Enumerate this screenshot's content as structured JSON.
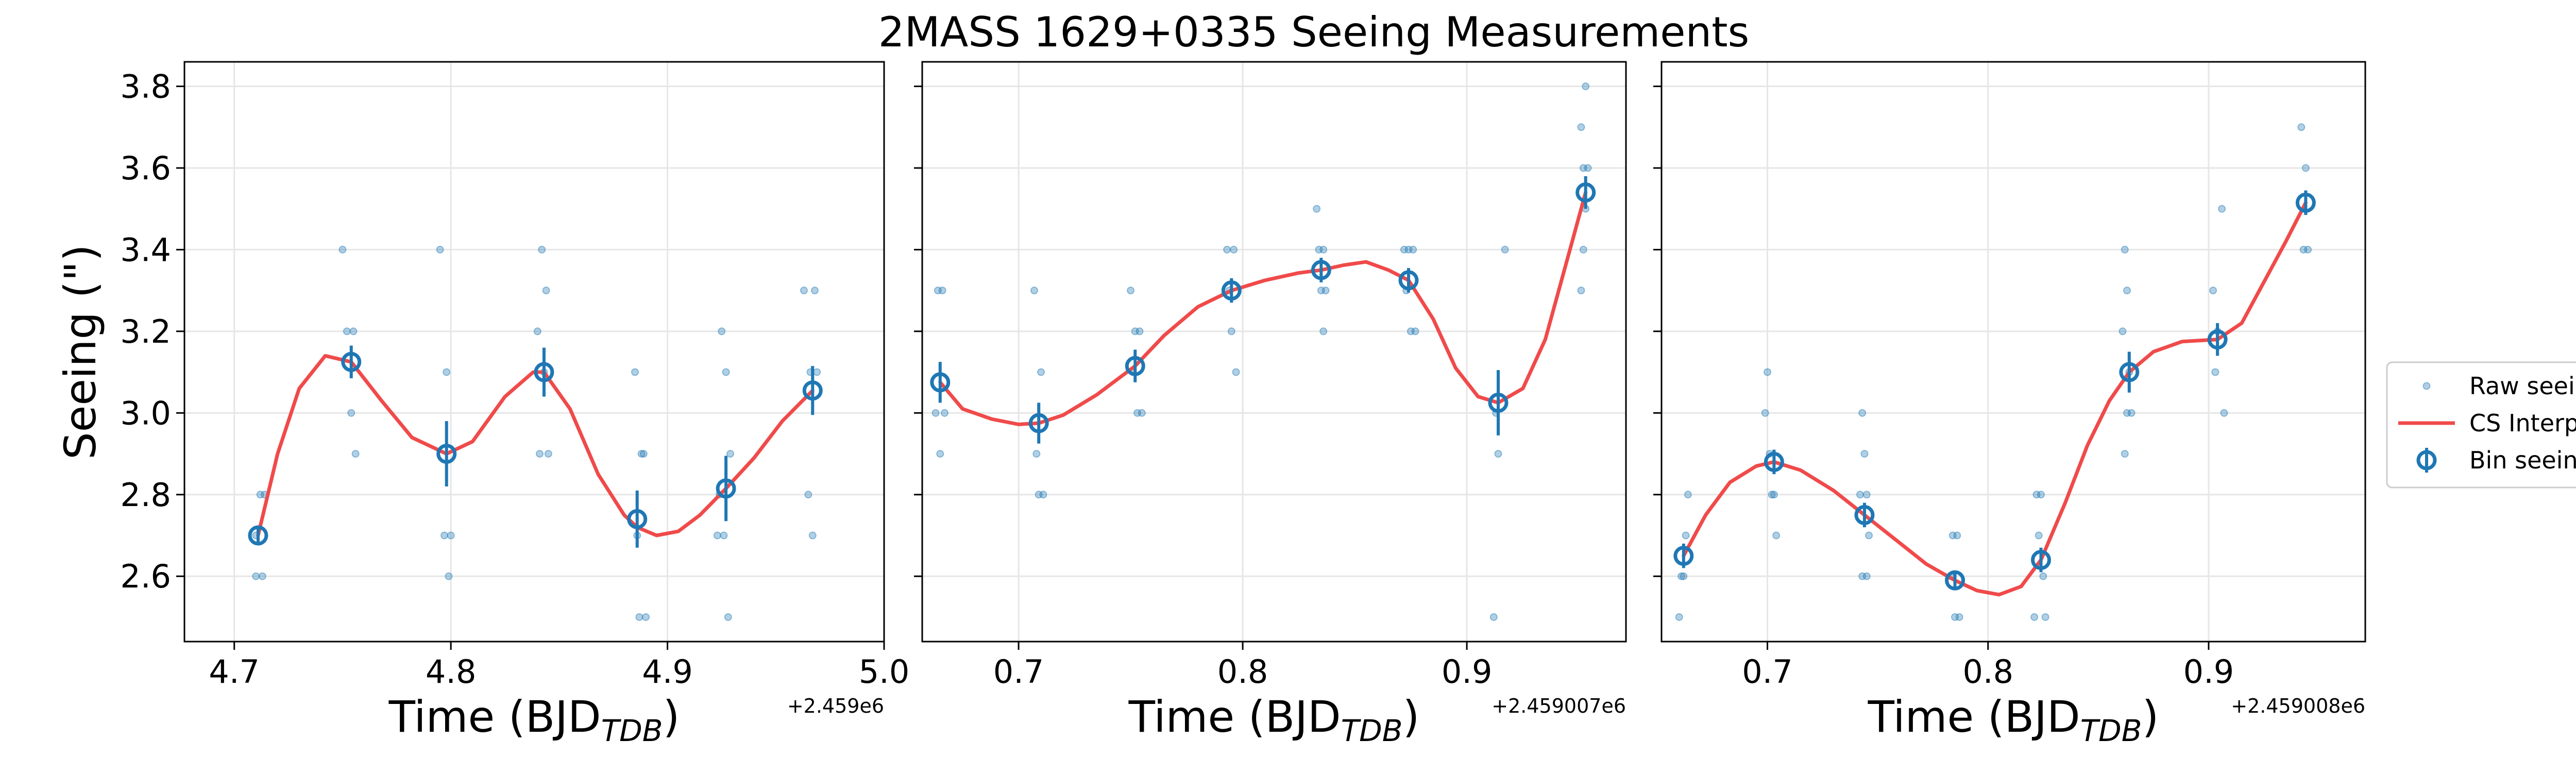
{
  "chart_data": {
    "type": "scatter",
    "title": "2MASS 1629+0335 Seeing Measurements",
    "ylabel": "Seeing (\")",
    "xlabel": {
      "main": "Time (BJD",
      "sub": "TDB",
      "close": ")"
    },
    "ylim": [
      2.44,
      3.86
    ],
    "yticks": [
      "2.6",
      "2.8",
      "3.0",
      "3.2",
      "3.4",
      "3.6",
      "3.8"
    ],
    "grid": true,
    "legend": {
      "placement": "right",
      "entries": [
        "Raw seeing",
        "CS Interp.",
        "Bin seeing"
      ]
    },
    "colors": {
      "raw": "#1f77b4",
      "interp": "#f04a4a",
      "bin": "#1f77b4"
    },
    "panels": [
      {
        "offset_label": "+2.459e6",
        "xlim": [
          4.677,
          5.0
        ],
        "xticks": [
          "4.7",
          "4.8",
          "4.9",
          "5.0"
        ],
        "raw": [
          [
            4.71,
            2.6
          ],
          [
            4.713,
            2.6
          ],
          [
            4.71,
            2.7
          ],
          [
            4.712,
            2.8
          ],
          [
            4.714,
            2.8
          ],
          [
            4.75,
            3.4
          ],
          [
            4.752,
            3.2
          ],
          [
            4.755,
            3.2
          ],
          [
            4.754,
            3.0
          ],
          [
            4.756,
            2.9
          ],
          [
            4.795,
            3.4
          ],
          [
            4.798,
            3.1
          ],
          [
            4.797,
            2.7
          ],
          [
            4.8,
            2.7
          ],
          [
            4.799,
            2.6
          ],
          [
            4.842,
            3.4
          ],
          [
            4.844,
            3.3
          ],
          [
            4.84,
            3.2
          ],
          [
            4.843,
            3.1
          ],
          [
            4.841,
            2.9
          ],
          [
            4.845,
            2.9
          ],
          [
            4.885,
            3.1
          ],
          [
            4.888,
            2.9
          ],
          [
            4.889,
            2.9
          ],
          [
            4.886,
            2.7
          ],
          [
            4.887,
            2.5
          ],
          [
            4.89,
            2.5
          ],
          [
            4.925,
            3.2
          ],
          [
            4.927,
            3.1
          ],
          [
            4.929,
            2.9
          ],
          [
            4.924,
            2.8
          ],
          [
            4.926,
            2.7
          ],
          [
            4.923,
            2.7
          ],
          [
            4.928,
            2.5
          ],
          [
            4.963,
            3.3
          ],
          [
            4.968,
            3.3
          ],
          [
            4.966,
            3.1
          ],
          [
            4.969,
            3.1
          ],
          [
            4.965,
            2.8
          ],
          [
            4.967,
            2.7
          ]
        ],
        "bins": [
          {
            "x": 4.711,
            "y": 2.7,
            "err": 0.02
          },
          {
            "x": 4.754,
            "y": 3.125,
            "err": 0.04
          },
          {
            "x": 4.798,
            "y": 2.9,
            "err": 0.08
          },
          {
            "x": 4.843,
            "y": 3.1,
            "err": 0.06
          },
          {
            "x": 4.886,
            "y": 2.74,
            "err": 0.07
          },
          {
            "x": 4.927,
            "y": 2.815,
            "err": 0.08
          },
          {
            "x": 4.967,
            "y": 3.055,
            "err": 0.06
          }
        ],
        "interp": [
          [
            4.711,
            2.7
          ],
          [
            4.72,
            2.9
          ],
          [
            4.73,
            3.06
          ],
          [
            4.742,
            3.14
          ],
          [
            4.754,
            3.125
          ],
          [
            4.768,
            3.03
          ],
          [
            4.782,
            2.94
          ],
          [
            4.798,
            2.9
          ],
          [
            4.81,
            2.93
          ],
          [
            4.825,
            3.04
          ],
          [
            4.838,
            3.1
          ],
          [
            4.843,
            3.1
          ],
          [
            4.855,
            3.01
          ],
          [
            4.868,
            2.85
          ],
          [
            4.88,
            2.75
          ],
          [
            4.886,
            2.72
          ],
          [
            4.895,
            2.7
          ],
          [
            4.905,
            2.71
          ],
          [
            4.915,
            2.75
          ],
          [
            4.927,
            2.815
          ],
          [
            4.94,
            2.89
          ],
          [
            4.953,
            2.98
          ],
          [
            4.967,
            3.055
          ]
        ]
      },
      {
        "offset_label": "+2.459007e6",
        "xlim": [
          4.657,
          4.971
        ],
        "xticks": [
          "0.7",
          "0.8",
          "0.9"
        ],
        "raw": [
          [
            4.664,
            3.3
          ],
          [
            4.666,
            3.3
          ],
          [
            4.663,
            3.0
          ],
          [
            4.667,
            3.0
          ],
          [
            4.665,
            2.9
          ],
          [
            4.707,
            3.3
          ],
          [
            4.71,
            3.1
          ],
          [
            4.708,
            2.9
          ],
          [
            4.709,
            2.8
          ],
          [
            4.711,
            2.8
          ],
          [
            4.75,
            3.3
          ],
          [
            4.752,
            3.2
          ],
          [
            4.754,
            3.2
          ],
          [
            4.751,
            3.1
          ],
          [
            4.755,
            3.0
          ],
          [
            4.753,
            3.0
          ],
          [
            4.793,
            3.4
          ],
          [
            4.796,
            3.4
          ],
          [
            4.794,
            3.3
          ],
          [
            4.795,
            3.2
          ],
          [
            4.797,
            3.1
          ],
          [
            4.833,
            3.5
          ],
          [
            4.834,
            3.4
          ],
          [
            4.836,
            3.4
          ],
          [
            4.835,
            3.3
          ],
          [
            4.837,
            3.3
          ],
          [
            4.836,
            3.2
          ],
          [
            4.872,
            3.4
          ],
          [
            4.874,
            3.4
          ],
          [
            4.876,
            3.4
          ],
          [
            4.873,
            3.3
          ],
          [
            4.875,
            3.2
          ],
          [
            4.877,
            3.2
          ],
          [
            4.913,
            3.0
          ],
          [
            4.914,
            2.9
          ],
          [
            4.917,
            3.4
          ],
          [
            4.912,
            2.5
          ],
          [
            4.953,
            3.8
          ],
          [
            4.951,
            3.7
          ],
          [
            4.952,
            3.6
          ],
          [
            4.954,
            3.6
          ],
          [
            4.953,
            3.5
          ],
          [
            4.952,
            3.4
          ],
          [
            4.951,
            3.3
          ]
        ],
        "bins": [
          {
            "x": 4.665,
            "y": 3.075,
            "err": 0.05
          },
          {
            "x": 4.709,
            "y": 2.975,
            "err": 0.05
          },
          {
            "x": 4.752,
            "y": 3.115,
            "err": 0.04
          },
          {
            "x": 4.795,
            "y": 3.3,
            "err": 0.03
          },
          {
            "x": 4.835,
            "y": 3.35,
            "err": 0.03
          },
          {
            "x": 4.874,
            "y": 3.325,
            "err": 0.03
          },
          {
            "x": 4.914,
            "y": 3.025,
            "err": 0.08
          },
          {
            "x": 4.953,
            "y": 3.54,
            "err": 0.04
          }
        ],
        "interp": [
          [
            4.665,
            3.075
          ],
          [
            4.675,
            3.01
          ],
          [
            4.688,
            2.985
          ],
          [
            4.7,
            2.972
          ],
          [
            4.709,
            2.975
          ],
          [
            4.72,
            2.995
          ],
          [
            4.735,
            3.045
          ],
          [
            4.752,
            3.115
          ],
          [
            4.765,
            3.19
          ],
          [
            4.78,
            3.26
          ],
          [
            4.795,
            3.3
          ],
          [
            4.81,
            3.325
          ],
          [
            4.825,
            3.343
          ],
          [
            4.835,
            3.35
          ],
          [
            4.845,
            3.362
          ],
          [
            4.855,
            3.37
          ],
          [
            4.865,
            3.35
          ],
          [
            4.874,
            3.325
          ],
          [
            4.885,
            3.23
          ],
          [
            4.895,
            3.11
          ],
          [
            4.905,
            3.04
          ],
          [
            4.914,
            3.025
          ],
          [
            4.925,
            3.06
          ],
          [
            4.935,
            3.18
          ],
          [
            4.945,
            3.38
          ],
          [
            4.953,
            3.54
          ]
        ]
      },
      {
        "offset_label": "+2.459008e6",
        "xlim": [
          4.652,
          4.971
        ],
        "xticks": [
          "0.7",
          "0.8",
          "0.9"
        ],
        "raw": [
          [
            4.66,
            2.5
          ],
          [
            4.661,
            2.6
          ],
          [
            4.662,
            2.6
          ],
          [
            4.663,
            2.7
          ],
          [
            4.664,
            2.8
          ],
          [
            4.7,
            3.1
          ],
          [
            4.699,
            3.0
          ],
          [
            4.701,
            2.9
          ],
          [
            4.702,
            2.8
          ],
          [
            4.703,
            2.8
          ],
          [
            4.704,
            2.7
          ],
          [
            4.743,
            3.0
          ],
          [
            4.744,
            2.9
          ],
          [
            4.742,
            2.8
          ],
          [
            4.745,
            2.8
          ],
          [
            4.746,
            2.7
          ],
          [
            4.743,
            2.6
          ],
          [
            4.745,
            2.6
          ],
          [
            4.784,
            2.7
          ],
          [
            4.786,
            2.7
          ],
          [
            4.783,
            2.6
          ],
          [
            4.787,
            2.5
          ],
          [
            4.785,
            2.5
          ],
          [
            4.822,
            2.8
          ],
          [
            4.824,
            2.8
          ],
          [
            4.823,
            2.7
          ],
          [
            4.825,
            2.6
          ],
          [
            4.821,
            2.5
          ],
          [
            4.826,
            2.5
          ],
          [
            4.862,
            3.4
          ],
          [
            4.863,
            3.3
          ],
          [
            4.861,
            3.2
          ],
          [
            4.864,
            3.1
          ],
          [
            4.863,
            3.0
          ],
          [
            4.865,
            3.0
          ],
          [
            4.862,
            2.9
          ],
          [
            4.902,
            3.3
          ],
          [
            4.906,
            3.5
          ],
          [
            4.904,
            3.2
          ],
          [
            4.903,
            3.1
          ],
          [
            4.907,
            3.0
          ],
          [
            4.942,
            3.7
          ],
          [
            4.944,
            3.6
          ],
          [
            4.943,
            3.4
          ],
          [
            4.945,
            3.4
          ]
        ],
        "bins": [
          {
            "x": 4.662,
            "y": 2.65,
            "err": 0.03
          },
          {
            "x": 4.703,
            "y": 2.88,
            "err": 0.03
          },
          {
            "x": 4.744,
            "y": 2.75,
            "err": 0.03
          },
          {
            "x": 4.785,
            "y": 2.59,
            "err": 0.02
          },
          {
            "x": 4.824,
            "y": 2.64,
            "err": 0.03
          },
          {
            "x": 4.864,
            "y": 3.1,
            "err": 0.05
          },
          {
            "x": 4.904,
            "y": 3.18,
            "err": 0.04
          },
          {
            "x": 4.944,
            "y": 3.515,
            "err": 0.03
          }
        ],
        "interp": [
          [
            4.662,
            2.65
          ],
          [
            4.672,
            2.75
          ],
          [
            4.683,
            2.83
          ],
          [
            4.695,
            2.87
          ],
          [
            4.703,
            2.88
          ],
          [
            4.715,
            2.86
          ],
          [
            4.73,
            2.81
          ],
          [
            4.744,
            2.75
          ],
          [
            4.758,
            2.69
          ],
          [
            4.772,
            2.63
          ],
          [
            4.785,
            2.59
          ],
          [
            4.795,
            2.565
          ],
          [
            4.805,
            2.555
          ],
          [
            4.815,
            2.575
          ],
          [
            4.824,
            2.64
          ],
          [
            4.835,
            2.78
          ],
          [
            4.845,
            2.92
          ],
          [
            4.855,
            3.03
          ],
          [
            4.864,
            3.1
          ],
          [
            4.875,
            3.15
          ],
          [
            4.888,
            3.175
          ],
          [
            4.904,
            3.18
          ],
          [
            4.915,
            3.22
          ],
          [
            4.925,
            3.32
          ],
          [
            4.935,
            3.42
          ],
          [
            4.944,
            3.515
          ]
        ]
      }
    ]
  }
}
